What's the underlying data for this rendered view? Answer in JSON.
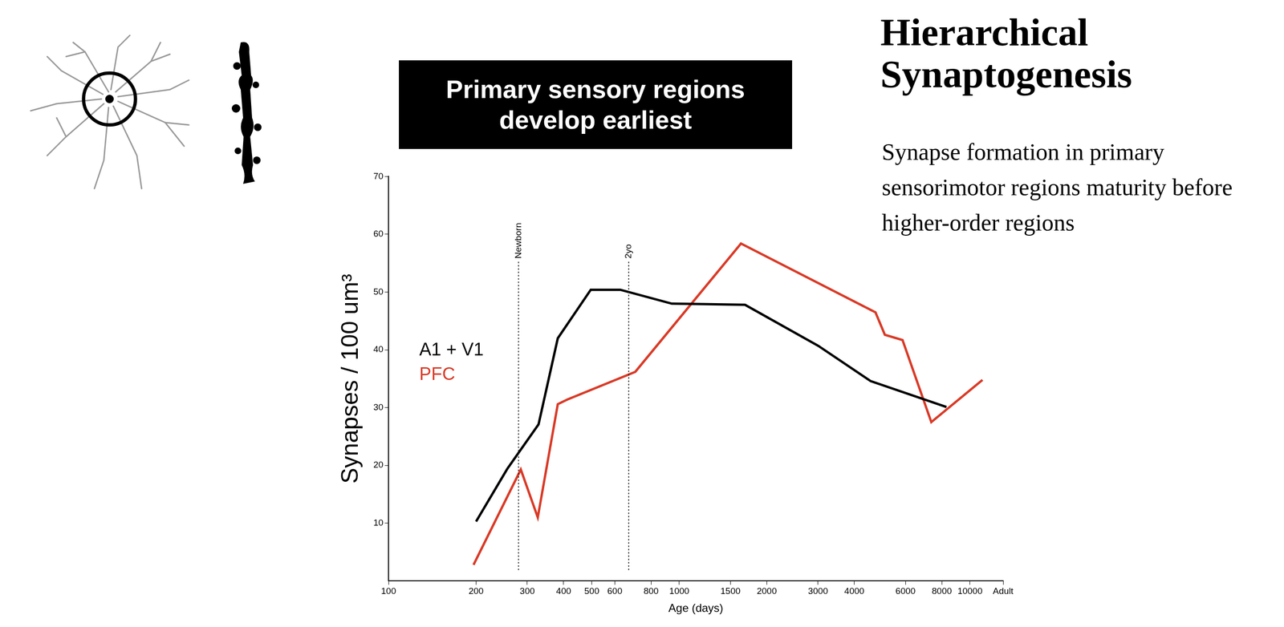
{
  "chart_data": {
    "type": "line",
    "title": "Hierarchical Synaptogenesis",
    "subtitle": "Synapse formation in primary sensorimotor regions maturity before higher-order regions",
    "banner": "Primary sensory regions develop earliest",
    "x_label": "Age (days)",
    "y_label": "Synapses / 100 um³",
    "log": "x",
    "xlim": [
      100,
      13000
    ],
    "xticks": [
      100,
      200,
      300,
      400,
      500,
      600,
      800,
      1000,
      1500,
      2000,
      3000,
      4000,
      6000,
      8000,
      10000,
      {
        "value": 13000,
        "label": "Adult"
      }
    ],
    "ylim": [
      0,
      70
    ],
    "yticks": [
      10,
      20,
      30,
      40,
      50,
      60,
      70
    ],
    "grid": false,
    "legend": "left",
    "annotations": [
      {
        "x": 280,
        "label": "Newborn"
      },
      {
        "x": 670,
        "label": "2yo"
      }
    ],
    "series": [
      {
        "name": "A1 + V1",
        "color": "#000000",
        "x": [
          200,
          256,
          328,
          382,
          496,
          627,
          942,
          1683,
          3006,
          4550,
          8300
        ],
        "values": [
          10.3,
          19.4,
          27.1,
          42,
          50.4,
          50.4,
          48,
          47.8,
          40.7,
          34.6,
          30.1
        ]
      },
      {
        "name": "PFC",
        "color": "#d93b28",
        "x": [
          196,
          285,
          326,
          382,
          412,
          706,
          1630,
          4730,
          5095,
          5860,
          7360,
          11040
        ],
        "values": [
          2.8,
          19.3,
          11,
          30.6,
          31.4,
          36.2,
          58.4,
          46.5,
          42.6,
          41.7,
          27.5,
          34.8
        ]
      }
    ]
  }
}
